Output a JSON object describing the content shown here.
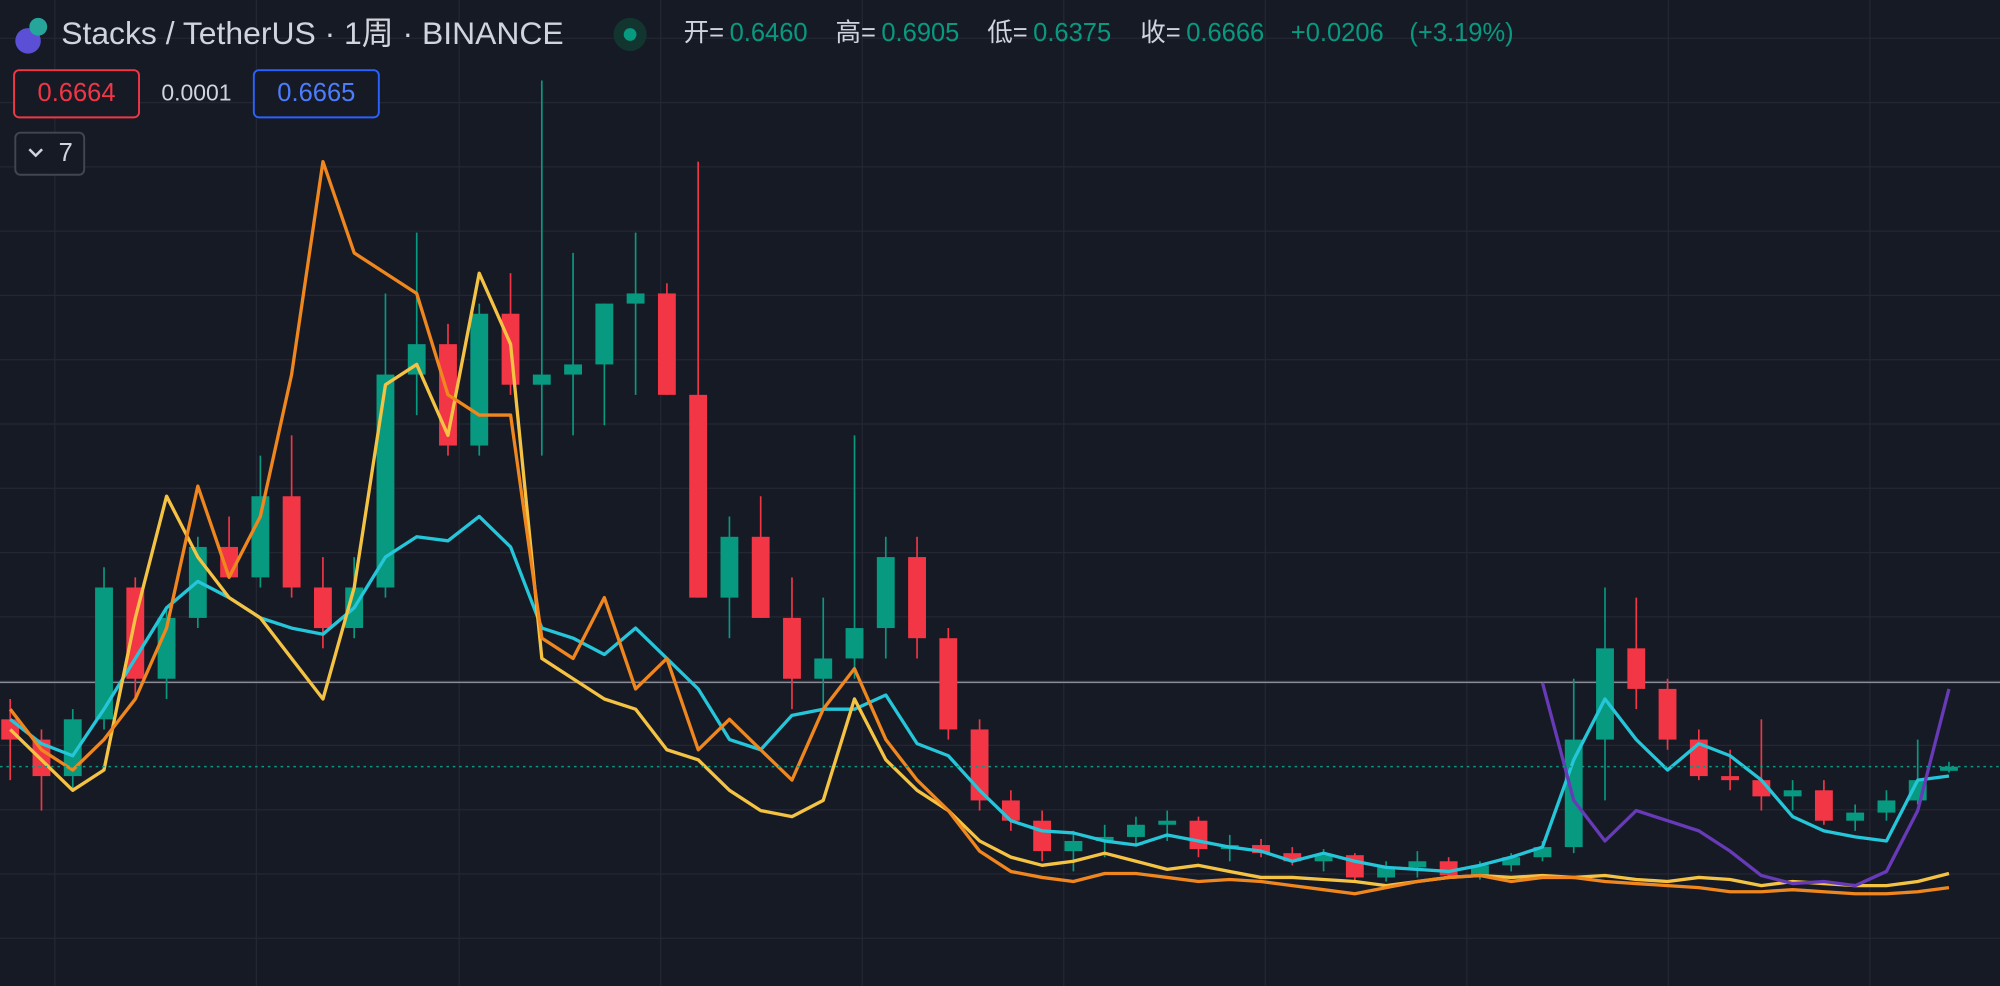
{
  "header": {
    "symbol": "Stacks / TetherUS · 1周 · BINANCE",
    "ohlc": [
      {
        "key": "开=",
        "value": {
          "value": 0.646,
          "label": "0.6460"
        }
      },
      {
        "key": "高=",
        "value": 0.6905
      },
      {
        "key": "低=",
        "value": 0.6375
      },
      {
        "key": "收=",
        "value": 0.6666
      }
    ],
    "change": {
      "value": 0.0206,
      "label": "+0.0206"
    },
    "change_pct": {
      "value": 3.19,
      "label": "(+3.19%)"
    }
  },
  "toolbar": {
    "sell": 0.6664,
    "spread": 0.0001,
    "buy": 0.6665,
    "indicators": 7
  },
  "chart_data": {
    "type": "candlestick",
    "ylim": [
      -0.415,
      4.447
    ],
    "up_color": "#089981",
    "down_color": "#f23645",
    "candles": [
      [
        0.9,
        1.0,
        0.6,
        0.8
      ],
      [
        0.8,
        0.85,
        0.45,
        0.62
      ],
      [
        0.62,
        0.95,
        0.55,
        0.9
      ],
      [
        0.9,
        1.65,
        0.85,
        1.55
      ],
      [
        1.55,
        1.6,
        1.0,
        1.1
      ],
      [
        1.1,
        1.45,
        1.0,
        1.4
      ],
      [
        1.4,
        1.8,
        1.35,
        1.75
      ],
      [
        1.75,
        1.9,
        1.6,
        1.6
      ],
      [
        1.6,
        2.2,
        1.55,
        2.0
      ],
      [
        2.0,
        2.3,
        1.5,
        1.55
      ],
      [
        1.55,
        1.7,
        1.25,
        1.35
      ],
      [
        1.35,
        1.7,
        1.3,
        1.55
      ],
      [
        1.55,
        3.0,
        1.5,
        2.6
      ],
      [
        2.6,
        3.3,
        2.4,
        2.75
      ],
      [
        2.75,
        2.85,
        2.2,
        2.25
      ],
      [
        2.25,
        2.95,
        2.2,
        2.9
      ],
      [
        2.9,
        3.1,
        2.5,
        2.55
      ],
      [
        2.55,
        4.05,
        2.2,
        2.6
      ],
      [
        2.6,
        3.2,
        2.3,
        2.65
      ],
      [
        2.65,
        2.95,
        2.35,
        2.95
      ],
      [
        2.95,
        3.3,
        2.5,
        3.0
      ],
      [
        3.0,
        3.05,
        2.5,
        2.5
      ],
      [
        2.5,
        3.65,
        1.5,
        1.5
      ],
      [
        1.5,
        1.9,
        1.3,
        1.8
      ],
      [
        1.8,
        2.0,
        1.4,
        1.4
      ],
      [
        1.4,
        1.6,
        0.95,
        1.1
      ],
      [
        1.1,
        1.5,
        0.95,
        1.2
      ],
      [
        1.2,
        2.3,
        1.1,
        1.35
      ],
      [
        1.35,
        1.8,
        1.2,
        1.7
      ],
      [
        1.7,
        1.8,
        1.2,
        1.3
      ],
      [
        1.3,
        1.35,
        0.8,
        0.85
      ],
      [
        0.85,
        0.9,
        0.45,
        0.5
      ],
      [
        0.5,
        0.55,
        0.35,
        0.4
      ],
      [
        0.4,
        0.45,
        0.2,
        0.25
      ],
      [
        0.25,
        0.35,
        0.15,
        0.3
      ],
      [
        0.3,
        0.38,
        0.22,
        0.32
      ],
      [
        0.32,
        0.42,
        0.28,
        0.38
      ],
      [
        0.38,
        0.45,
        0.3,
        0.4
      ],
      [
        0.4,
        0.42,
        0.22,
        0.26
      ],
      [
        0.26,
        0.33,
        0.2,
        0.28
      ],
      [
        0.28,
        0.31,
        0.22,
        0.24
      ],
      [
        0.24,
        0.27,
        0.18,
        0.2
      ],
      [
        0.2,
        0.26,
        0.15,
        0.23
      ],
      [
        0.23,
        0.24,
        0.1,
        0.12
      ],
      [
        0.12,
        0.2,
        0.1,
        0.17
      ],
      [
        0.17,
        0.25,
        0.12,
        0.2
      ],
      [
        0.2,
        0.22,
        0.12,
        0.13
      ],
      [
        0.13,
        0.2,
        0.11,
        0.18
      ],
      [
        0.18,
        0.24,
        0.15,
        0.22
      ],
      [
        0.22,
        0.3,
        0.2,
        0.27
      ],
      [
        0.27,
        1.1,
        0.24,
        0.8
      ],
      [
        0.8,
        1.55,
        0.5,
        1.25
      ],
      [
        1.25,
        1.5,
        0.95,
        1.05
      ],
      [
        1.05,
        1.1,
        0.75,
        0.8
      ],
      [
        0.8,
        0.85,
        0.6,
        0.62
      ],
      [
        0.62,
        0.75,
        0.55,
        0.6
      ],
      [
        0.6,
        0.9,
        0.45,
        0.52
      ],
      [
        0.52,
        0.6,
        0.45,
        0.55
      ],
      [
        0.55,
        0.6,
        0.38,
        0.4
      ],
      [
        0.4,
        0.48,
        0.35,
        0.44
      ],
      [
        0.44,
        0.55,
        0.4,
        0.5
      ],
      [
        0.5,
        0.8,
        0.48,
        0.6
      ],
      [
        0.646,
        0.6905,
        0.6375,
        0.6666
      ]
    ],
    "series": [
      {
        "color": "#26c6da",
        "values": [
          0.9,
          0.78,
          0.72,
          0.95,
          1.2,
          1.45,
          1.58,
          1.5,
          1.4,
          1.35,
          1.32,
          1.45,
          1.7,
          1.8,
          1.78,
          1.9,
          1.75,
          1.35,
          1.3,
          1.22,
          1.35,
          1.2,
          1.05,
          0.8,
          0.75,
          0.92,
          0.95,
          0.95,
          1.02,
          0.78,
          0.72,
          0.55,
          0.4,
          0.35,
          0.34,
          0.3,
          0.28,
          0.33,
          0.3,
          0.27,
          0.25,
          0.2,
          0.24,
          0.2,
          0.17,
          0.16,
          0.15,
          0.18,
          0.22,
          0.27,
          0.7,
          1.0,
          0.8,
          0.65,
          0.78,
          0.72,
          0.6,
          0.42,
          0.35,
          0.32,
          0.3,
          0.6,
          0.62
        ]
      },
      {
        "color": "#f5c343",
        "values": [
          0.85,
          0.7,
          0.55,
          0.65,
          1.4,
          2.0,
          1.7,
          1.5,
          1.4,
          1.2,
          1.0,
          1.55,
          2.55,
          2.65,
          2.3,
          3.1,
          2.75,
          1.2,
          1.1,
          1.0,
          0.95,
          0.75,
          0.7,
          0.55,
          0.45,
          0.42,
          0.5,
          1.0,
          0.7,
          0.55,
          0.45,
          0.3,
          0.22,
          0.18,
          0.2,
          0.24,
          0.2,
          0.16,
          0.18,
          0.15,
          0.12,
          0.12,
          0.11,
          0.1,
          0.08,
          0.1,
          0.12,
          0.13,
          0.12,
          0.13,
          0.12,
          0.13,
          0.11,
          0.1,
          0.12,
          0.11,
          0.08,
          0.1,
          0.09,
          0.08,
          0.08,
          0.1,
          0.14
        ]
      },
      {
        "color": "#f0861e",
        "values": [
          0.95,
          0.75,
          0.65,
          0.8,
          1.0,
          1.35,
          2.05,
          1.6,
          1.9,
          2.6,
          3.65,
          3.2,
          3.1,
          3.0,
          2.5,
          2.4,
          2.4,
          1.3,
          1.2,
          1.5,
          1.05,
          1.2,
          0.75,
          0.9,
          0.75,
          0.6,
          0.95,
          1.15,
          0.8,
          0.6,
          0.45,
          0.25,
          0.15,
          0.12,
          0.1,
          0.14,
          0.14,
          0.12,
          0.1,
          0.11,
          0.1,
          0.08,
          0.06,
          0.04,
          0.07,
          0.1,
          0.12,
          0.13,
          0.1,
          0.12,
          0.12,
          0.1,
          0.09,
          0.08,
          0.07,
          0.05,
          0.05,
          0.06,
          0.05,
          0.04,
          0.04,
          0.05,
          0.07
        ]
      },
      {
        "color": "#673ab7",
        "values": [
          null,
          null,
          null,
          null,
          null,
          null,
          null,
          null,
          null,
          null,
          null,
          null,
          null,
          null,
          null,
          null,
          null,
          null,
          null,
          null,
          null,
          null,
          null,
          null,
          null,
          null,
          null,
          null,
          null,
          null,
          null,
          null,
          null,
          null,
          null,
          null,
          null,
          null,
          null,
          null,
          null,
          null,
          null,
          null,
          null,
          null,
          null,
          null,
          null,
          1.08,
          0.5,
          0.3,
          0.45,
          0.4,
          0.35,
          0.25,
          0.13,
          0.09,
          0.1,
          0.08,
          0.15,
          0.45,
          1.05
        ]
      }
    ]
  }
}
